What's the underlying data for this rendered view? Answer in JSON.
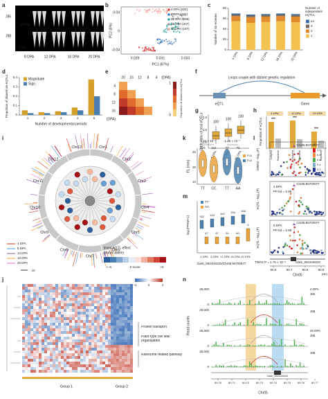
{
  "panels": [
    {
      "label": "a",
      "texts": [
        "J85",
        "J98",
        "4 DPA",
        "1 cm",
        "8 DPA",
        "12 DPA",
        "16 DPA",
        "20 DPA"
      ]
    },
    {
      "label": "b",
      "texts": [
        "PC2 (8%)",
        "PC1 (87%)",
        "0.04",
        "0",
        "-0.04",
        "0.029",
        "0.031",
        "0.033",
        "4 DPA (202)",
        "8 DPA (201)",
        "12 DPA (198)",
        "16 DPA (207)",
        "20 DPA (197)"
      ]
    },
    {
      "label": "e",
      "texts": [
        "20",
        "16",
        "12",
        "8",
        "4",
        "(DPA)",
        "4",
        "8",
        "12",
        "16",
        "(DPA)",
        "Proportion of shared cis-eQTLs",
        "1",
        "0"
      ]
    },
    {
      "label": "f",
      "texts": [
        "Loops couple with distant genetic regulation",
        "eQTL",
        "Gene"
      ]
    },
    {
      "label": "g",
      "texts": [
        "Odds ratio of real eQTLs",
        "100",
        "100",
        "100",
        "4 DPA",
        "12 DPA",
        "20 DPA",
        "2.0",
        "1.5",
        "1.0"
      ]
    },
    {
      "label": "h",
      "texts": [
        "Proportion of eQTLs",
        "4 DPA",
        "12 DPA",
        "20 DPA",
        "***",
        "***",
        "***",
        "Looped",
        "Random",
        "Looped",
        "Random",
        "Looped",
        "Random"
      ]
    },
    {
      "label": "i",
      "texts": [
        "Chr1",
        "Chr2",
        "Chr3",
        "Chr4",
        "Chr5",
        "Chr6",
        "Chr7",
        "Chr8",
        "Chr9",
        "Chr10",
        "Chr11",
        "Chr12",
        "Chr13",
        "4 DPA",
        "8 DPA",
        "12 DPA",
        "16 DPA",
        "20 DPA",
        "10",
        "trans-eQTL effect",
        "(minor allele)",
        "<−6",
        "Z-score",
        ">6"
      ]
    },
    {
      "label": "k",
      "texts": [
        "1.04 × 10⁻⁷",
        "1.26 × 10⁻⁷",
        "FL (mm)",
        "124",
        "114",
        "77",
        "72",
        "TT",
        "CC",
        "TT",
        "AA",
        "FL5",
        "FL6",
        "30",
        "20",
        "10"
      ]
    },
    {
      "label": "l",
      "texts": [
        "GWAS −log₁₀(P)",
        "4 DPA",
        "PP.H4 = 0.98",
        "eQTL −log₁₀(P)",
        "8 DPA",
        "PP.H4 = 0.88",
        "eQTL −log₁₀(P)",
        "Chr05:90700977",
        "Chr05:90700977",
        "Chr05:90700977",
        "TWAS P = 1.75 × 10⁻⁶",
        "Garb_05G040220",
        "90.6",
        "90.7",
        "90.8",
        "90.9",
        "(Mb)",
        "Chr05",
        "r²",
        "1.0",
        "0.8",
        "0.6",
        "0.4",
        "0.2"
      ]
    },
    {
      "label": "m",
      "texts": [
        "log₂(FPKM+1)",
        "TT",
        "AA",
        "4 DPA",
        "8 DPA",
        "12 DPA",
        "16 DPA",
        "20 DPA",
        "Garb_05G040220/Chr05:90700977",
        "152",
        "47",
        "149",
        "47",
        "162",
        "51",
        "154",
        "40",
        "188",
        "6"
      ]
    },
    {
      "label": "j",
      "texts": [
        "Protein transport",
        "Plant-type cell wall organization",
        "Ribosome related pathway",
        "Group 1",
        "Group 2",
        "−4",
        "0",
        "4"
      ]
    },
    {
      "label": "n",
      "texts": [
        "Read counts",
        "25,000",
        "0",
        "25,000",
        "0",
        "25,000",
        "0",
        "25,000",
        "0",
        "4 DPA",
        "J85",
        "J98",
        "20 DPA",
        "J85",
        "J98",
        "90.70",
        "90.71",
        "90.72",
        "90.73",
        "90.74",
        "90.75",
        "90.76",
        "90.77",
        "Chr05",
        "Garb_05G040220"
      ]
    }
  ],
  "chart_data": [
    {
      "type": "stacked_bar",
      "panel": "c",
      "ylabel": "Number of cis-eGenes",
      "legend_title": "Number of independent eQTLs",
      "categories": [
        "4 DPA",
        "8 DPA",
        "12 DPA",
        "16 DPA",
        "20 DPA"
      ],
      "series": [
        {
          "name": "1",
          "color": "#f2c14e",
          "values": [
            55,
            52,
            54,
            55,
            53
          ]
        },
        {
          "name": "2",
          "color": "#e08a2c",
          "values": [
            10,
            11,
            10,
            10,
            11
          ]
        },
        {
          "name": "3",
          "color": "#7a6a5a",
          "values": [
            3,
            3,
            3,
            3,
            3
          ]
        },
        {
          "name": "≥4",
          "color": "#3b6ea8",
          "values": [
            2,
            2,
            2,
            2,
            2
          ]
        }
      ],
      "ylim": [
        0,
        80
      ],
      "yticks": [
        0,
        20,
        40,
        60,
        80
      ]
    },
    {
      "type": "bar",
      "panel": "d",
      "ylabel": "Proportion of shared cis-eQTLs",
      "xlabel": "Number of developmental periods",
      "categories": [
        "1",
        "2",
        "3",
        "4",
        "5"
      ],
      "series": [
        {
          "name": "Magnitude",
          "color": "#d4a02a",
          "values": [
            0.05,
            0.03,
            0.04,
            0.08,
            0.38
          ]
        },
        {
          "name": "Sign",
          "color": "#4a7fb0",
          "values": [
            0.02,
            0.02,
            0.03,
            0.05,
            0.2
          ]
        }
      ],
      "ylim": [
        0,
        0.4
      ],
      "yticks": [
        0,
        0.1,
        0.2,
        0.3,
        0.4
      ]
    }
  ]
}
